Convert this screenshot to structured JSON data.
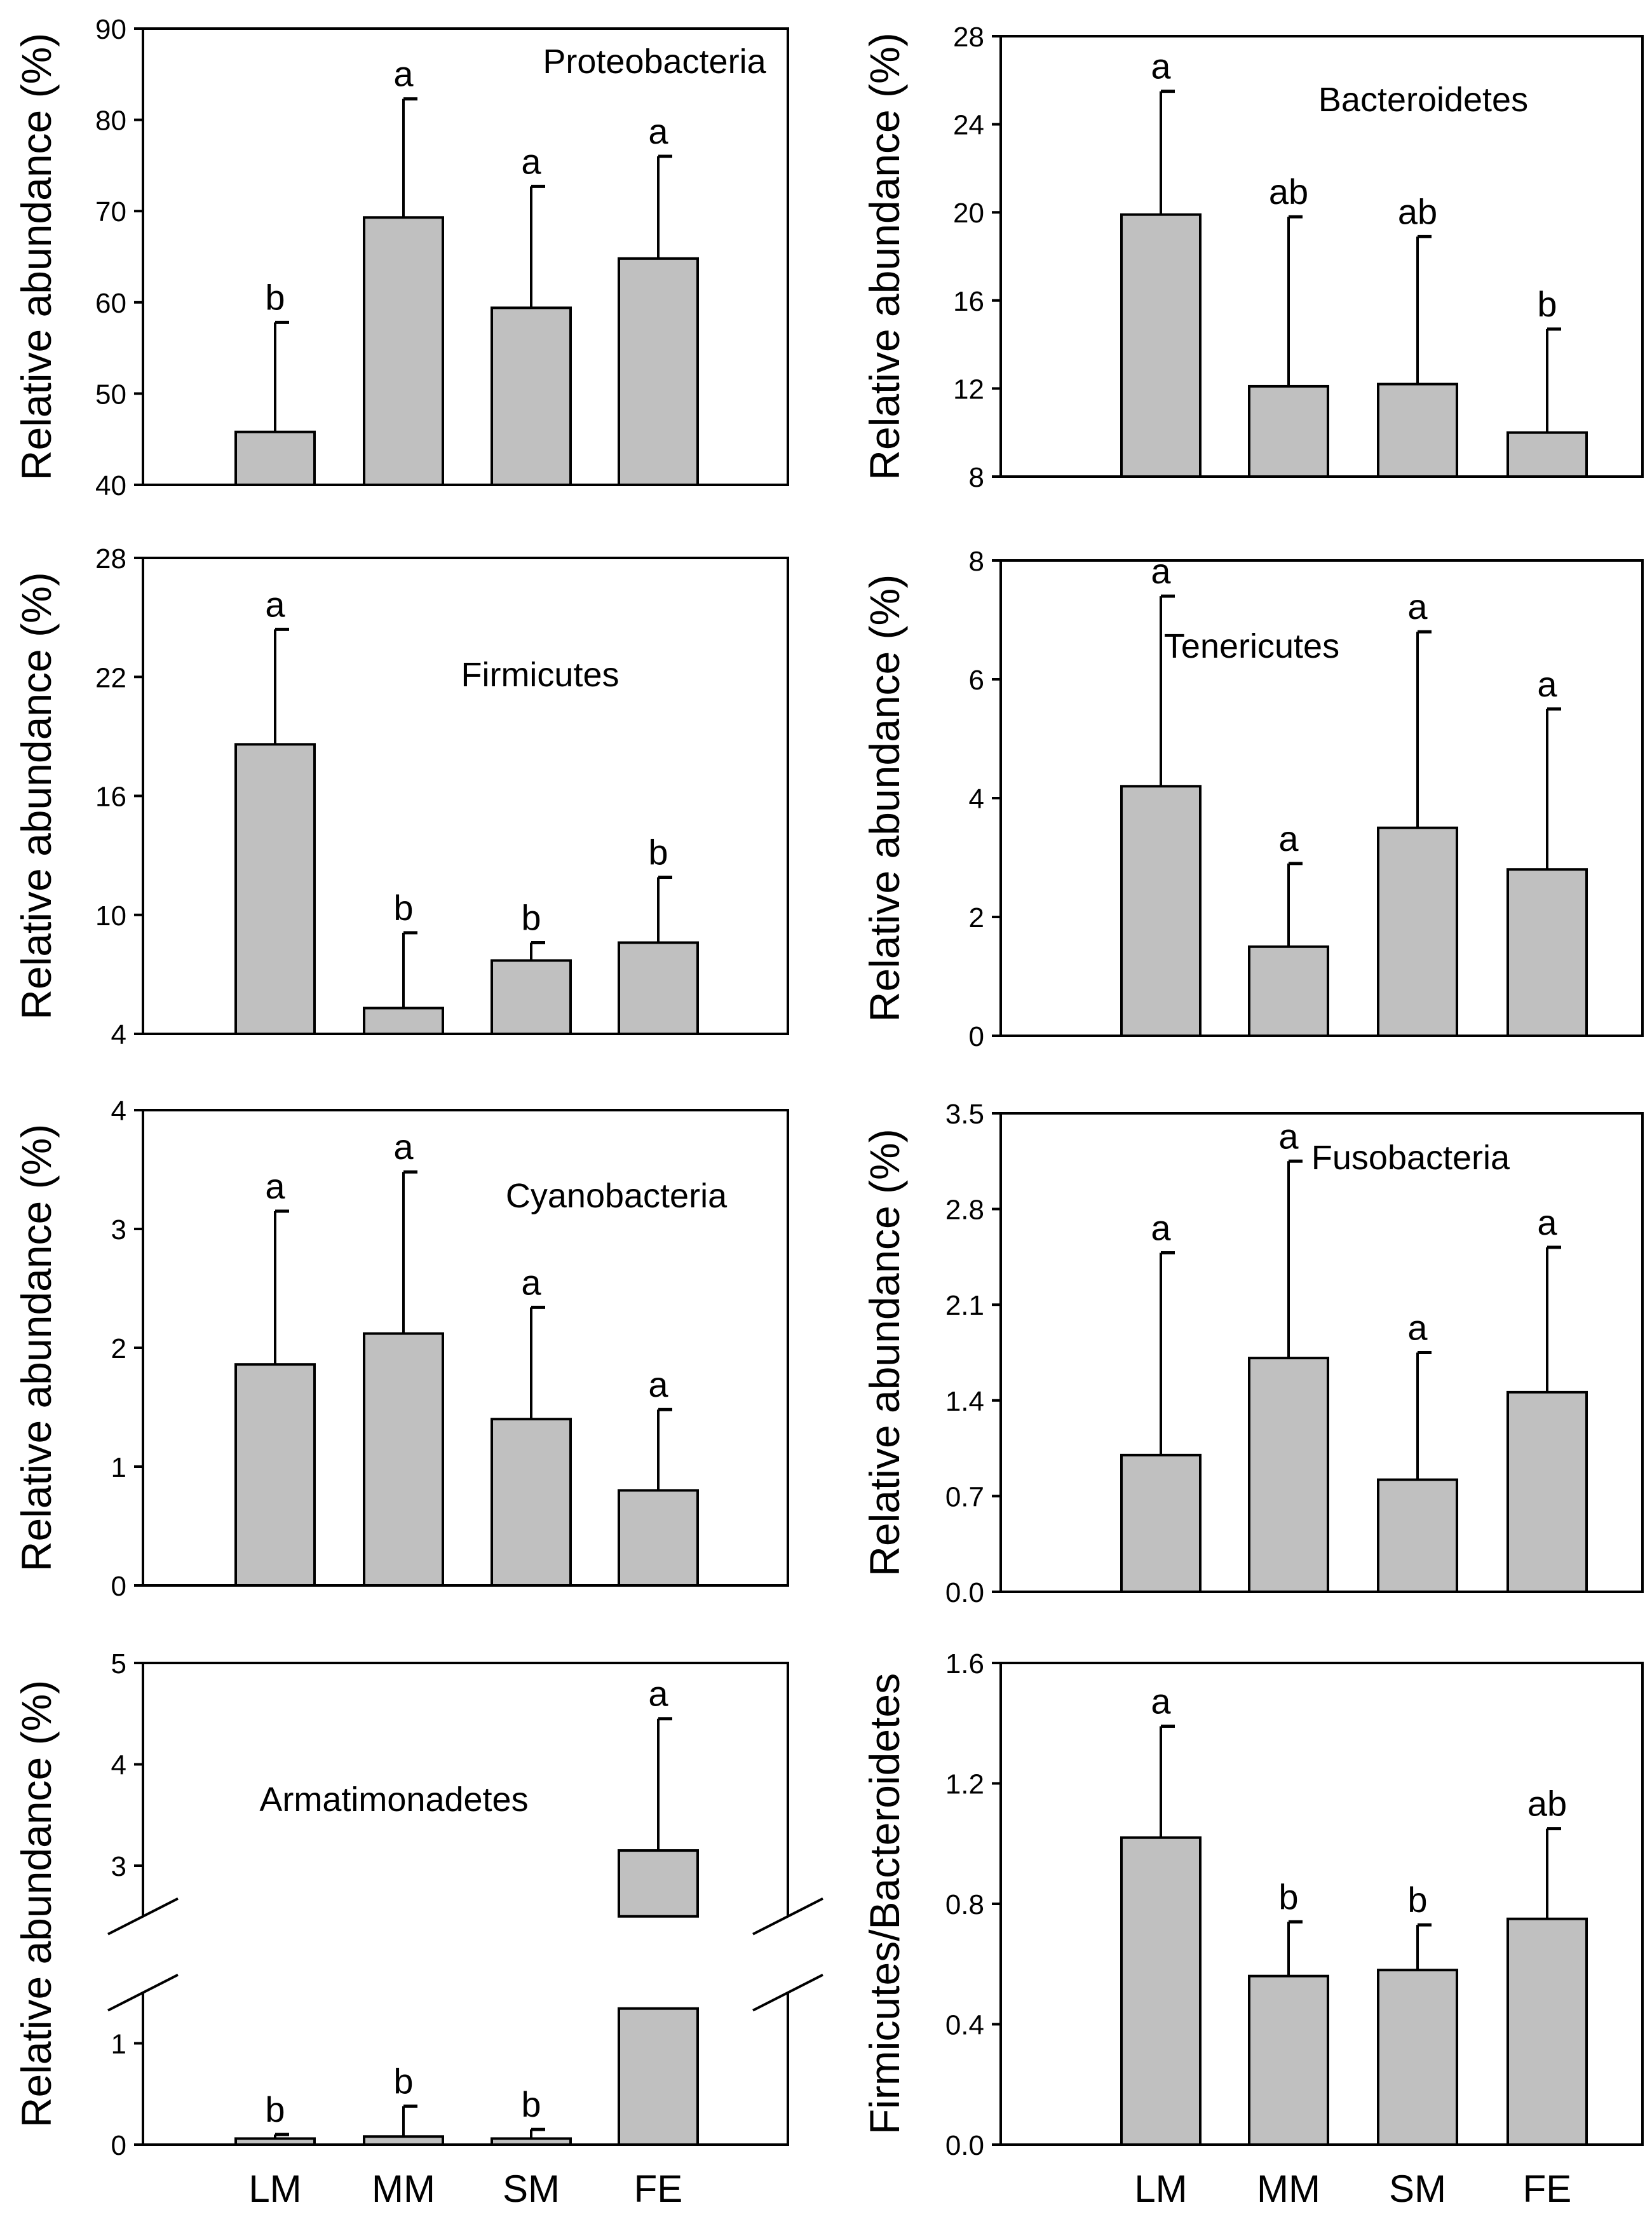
{
  "chart_data": [
    {
      "type": "bar",
      "panel": "Proteobacteria",
      "title": "Proteobacteria",
      "ylabel": "Relative abundance (%)",
      "ylim": [
        40,
        90
      ],
      "yticks": [
        40,
        50,
        60,
        70,
        80,
        90
      ],
      "yticklabels": [
        "40",
        "50",
        "60",
        "70",
        "80",
        "90"
      ],
      "categories": [
        "LM",
        "MM",
        "SM",
        "FE"
      ],
      "values": [
        45.8,
        69.3,
        59.4,
        64.8
      ],
      "errors": [
        57.8,
        82.3,
        72.7,
        76.0
      ],
      "significance": [
        "b",
        "a",
        "a",
        "a"
      ]
    },
    {
      "type": "bar",
      "panel": "Bacteroidetes",
      "title": "Bacteroidetes",
      "ylabel": "Relative abundance (%)",
      "ylim": [
        8,
        28
      ],
      "yticks": [
        8,
        12,
        16,
        20,
        24,
        28
      ],
      "yticklabels": [
        "8",
        "12",
        "16",
        "20",
        "24",
        "28"
      ],
      "categories": [
        "LM",
        "MM",
        "SM",
        "FE"
      ],
      "values": [
        19.9,
        12.1,
        12.2,
        10.0
      ],
      "errors": [
        25.5,
        19.8,
        18.9,
        14.7
      ],
      "significance": [
        "a",
        "ab",
        "ab",
        "b"
      ]
    },
    {
      "type": "bar",
      "panel": "Firmicutes",
      "title": "Firmicutes",
      "ylabel": "Relative abundance (%)",
      "ylim": [
        4,
        28
      ],
      "yticks": [
        4,
        10,
        16,
        22,
        28
      ],
      "yticklabels": [
        "4",
        "10",
        "16",
        "22",
        "28"
      ],
      "categories": [
        "LM",
        "MM",
        "SM",
        "FE"
      ],
      "values": [
        18.6,
        5.3,
        7.7,
        8.6
      ],
      "errors": [
        24.4,
        9.1,
        8.6,
        11.9
      ],
      "significance": [
        "a",
        "b",
        "b",
        "b"
      ]
    },
    {
      "type": "bar",
      "panel": "Tenericutes",
      "title": "Tenericutes",
      "ylabel": "Relative abundance (%)",
      "ylim": [
        0,
        8
      ],
      "yticks": [
        0,
        2,
        4,
        6,
        8
      ],
      "yticklabels": [
        "0",
        "2",
        "4",
        "6",
        "8"
      ],
      "categories": [
        "LM",
        "MM",
        "SM",
        "FE"
      ],
      "values": [
        4.2,
        1.5,
        3.5,
        2.8
      ],
      "errors": [
        7.4,
        2.9,
        6.8,
        5.5
      ],
      "significance": [
        "a",
        "a",
        "a",
        "a"
      ]
    },
    {
      "type": "bar",
      "panel": "Cyanobacteria",
      "title": "Cyanobacteria",
      "ylabel": "Relative abundance (%)",
      "ylim": [
        0,
        4
      ],
      "yticks": [
        0,
        1,
        2,
        3,
        4
      ],
      "yticklabels": [
        "0",
        "1",
        "2",
        "3",
        "4"
      ],
      "categories": [
        "LM",
        "MM",
        "SM",
        "FE"
      ],
      "values": [
        1.86,
        2.12,
        1.4,
        0.8
      ],
      "errors": [
        3.15,
        3.48,
        2.34,
        1.48
      ],
      "significance": [
        "a",
        "a",
        "a",
        "a"
      ]
    },
    {
      "type": "bar",
      "panel": "Fusobacteria",
      "title": "Fusobacteria",
      "ylabel": "Relative abundance (%)",
      "ylim": [
        0,
        3.5
      ],
      "yticks": [
        0,
        0.7,
        1.4,
        2.1,
        2.8,
        3.5
      ],
      "yticklabels": [
        "0.0",
        "0.7",
        "1.4",
        "2.1",
        "2.8",
        "3.5"
      ],
      "categories": [
        "LM",
        "MM",
        "SM",
        "FE"
      ],
      "values": [
        1.0,
        1.71,
        0.82,
        1.46
      ],
      "errors": [
        2.48,
        3.15,
        1.75,
        2.52
      ],
      "significance": [
        "a",
        "a",
        "a",
        "a"
      ]
    },
    {
      "type": "bar",
      "panel": "Armatimonadetes",
      "title": "Armatimonadetes",
      "ylabel": "Relative abundance (%)",
      "ylim": [
        0,
        5
      ],
      "axis_break": [
        1.5,
        2.5
      ],
      "yticks": [
        0,
        1,
        3,
        4,
        5
      ],
      "yticklabels": [
        "0",
        "1",
        "3",
        "4",
        "5"
      ],
      "categories": [
        "LM",
        "MM",
        "SM",
        "FE"
      ],
      "values": [
        0.06,
        0.08,
        0.06,
        3.15
      ],
      "errors": [
        0.1,
        0.38,
        0.15,
        4.45
      ],
      "significance": [
        "b",
        "b",
        "b",
        "a"
      ]
    },
    {
      "type": "bar",
      "panel": "Firmicutes/Bacteroidetes",
      "title": "",
      "ylabel": "Firmicutes/Bacteroidetes",
      "ylim": [
        0,
        1.6
      ],
      "yticks": [
        0,
        0.4,
        0.8,
        1.2,
        1.6
      ],
      "yticklabels": [
        "0.0",
        "0.4",
        "0.8",
        "1.2",
        "1.6"
      ],
      "categories": [
        "LM",
        "MM",
        "SM",
        "FE"
      ],
      "values": [
        1.02,
        0.56,
        0.58,
        0.75
      ],
      "errors": [
        1.39,
        0.74,
        0.73,
        1.05
      ],
      "significance": [
        "a",
        "b",
        "b",
        "ab"
      ]
    }
  ],
  "colors": {
    "bar_fill": "#c0c0c0",
    "bar_stroke": "#000000",
    "axis": "#000000",
    "background": "#ffffff"
  }
}
